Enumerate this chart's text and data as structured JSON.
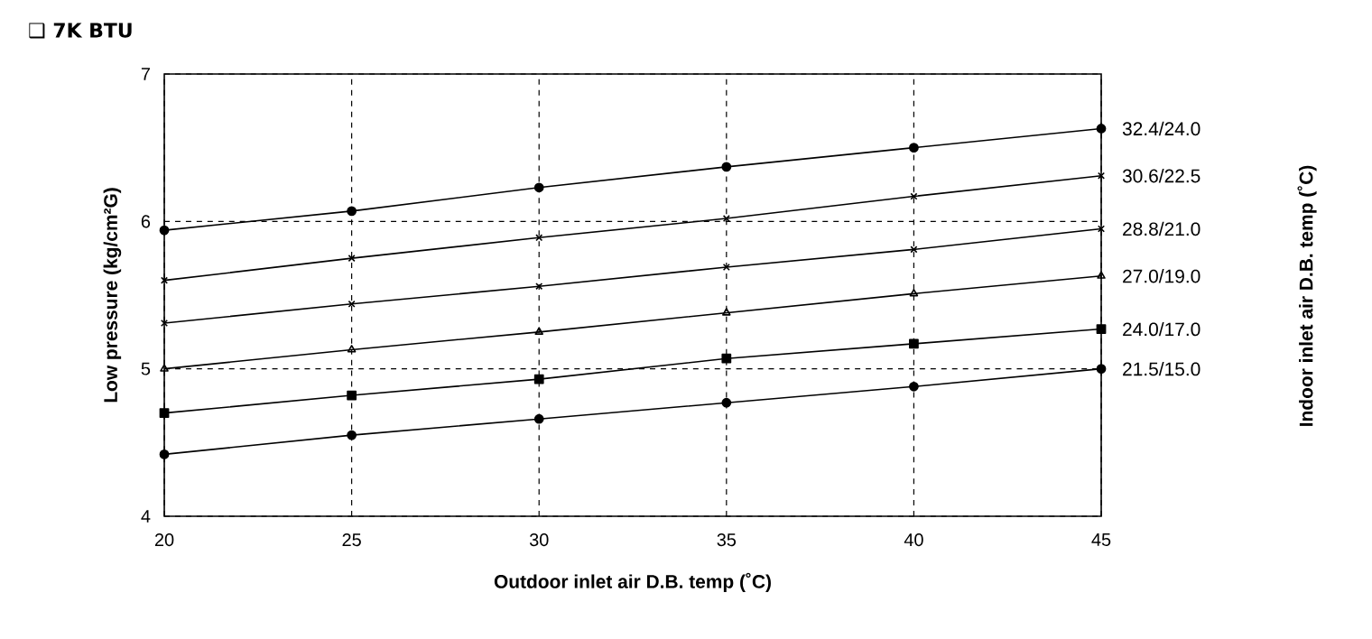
{
  "chart_data": {
    "type": "line",
    "title": "❑ 7K BTU",
    "xlabel": "Outdoor inlet air D.B. temp (˚C)",
    "ylabel": "Low pressure (kg/cm²G)",
    "legend_title": "Indoor inlet air D.B. temp (˚C)",
    "x": [
      20,
      25,
      30,
      35,
      40,
      45
    ],
    "xlim": [
      20,
      45
    ],
    "xticks": [
      20,
      25,
      30,
      35,
      40,
      45
    ],
    "ylim": [
      4,
      7
    ],
    "yticks": [
      4,
      5,
      6,
      7
    ],
    "grid": true,
    "series": [
      {
        "name": "32.4/24.0",
        "color": "#000000",
        "marker": "circle",
        "values": [
          5.94,
          6.07,
          6.23,
          6.37,
          6.5,
          6.63
        ]
      },
      {
        "name": "30.6/22.5",
        "color": "#000000",
        "marker": "cross",
        "values": [
          5.6,
          5.75,
          5.89,
          6.02,
          6.17,
          6.31
        ]
      },
      {
        "name": "28.8/21.0",
        "color": "#000000",
        "marker": "cross",
        "values": [
          5.31,
          5.44,
          5.56,
          5.69,
          5.81,
          5.95
        ]
      },
      {
        "name": "27.0/19.0",
        "color": "#000000",
        "marker": "triangle",
        "values": [
          5.0,
          5.13,
          5.25,
          5.38,
          5.51,
          5.63
        ]
      },
      {
        "name": "24.0/17.0",
        "color": "#000000",
        "marker": "square",
        "values": [
          4.7,
          4.82,
          4.93,
          5.07,
          5.17,
          5.27
        ]
      },
      {
        "name": "21.5/15.0",
        "color": "#000000",
        "marker": "circle",
        "values": [
          4.42,
          4.55,
          4.66,
          4.77,
          4.88,
          5.0
        ]
      }
    ]
  }
}
